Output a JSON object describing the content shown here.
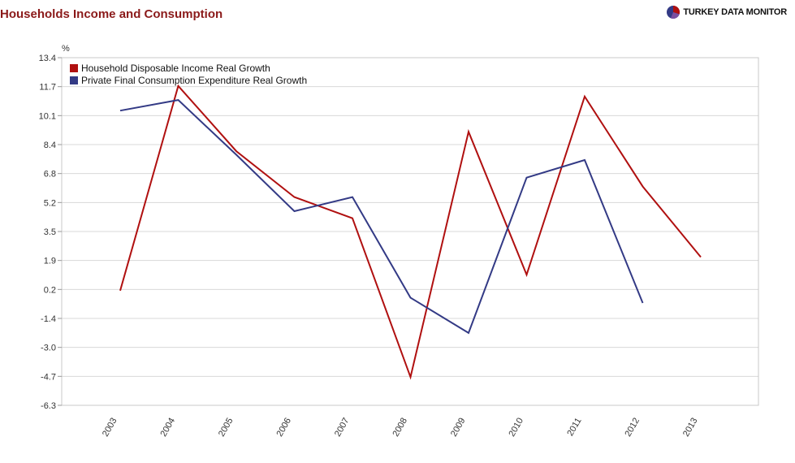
{
  "header": {
    "title": "Households Income and Consumption",
    "brand": "TURKEY DATA MONITOR"
  },
  "colors": {
    "series_income": "#b01010",
    "series_consumption": "#333a85",
    "title": "#8b1a1a",
    "grid": "#d8d8d8"
  },
  "chart_data": {
    "type": "line",
    "title": "Households Income and Consumption",
    "xlabel": "",
    "ylabel": "%",
    "ylim": [
      -6.3,
      13.4
    ],
    "yticks": [
      "13.4",
      "11.7",
      "10.1",
      "8.4",
      "6.8",
      "5.2",
      "3.5",
      "1.9",
      "0.2",
      "-1.4",
      "-3.0",
      "-4.7",
      "-6.3"
    ],
    "categories": [
      "2003",
      "2004",
      "2005",
      "2006",
      "2007",
      "2008",
      "2009",
      "2010",
      "2011",
      "2012",
      "2013"
    ],
    "legend_position": "top-left",
    "grid": true,
    "series": [
      {
        "name": "Household Disposable Income Real Growth",
        "values": [
          0.2,
          11.8,
          8.1,
          5.5,
          4.3,
          -4.7,
          9.2,
          1.1,
          11.2,
          6.1,
          2.1
        ]
      },
      {
        "name": "Private Final Consumption Expenditure Real Growth",
        "values": [
          10.4,
          11.0,
          7.9,
          4.7,
          5.5,
          -0.2,
          -2.2,
          6.6,
          7.6,
          -0.5,
          null
        ]
      }
    ]
  }
}
